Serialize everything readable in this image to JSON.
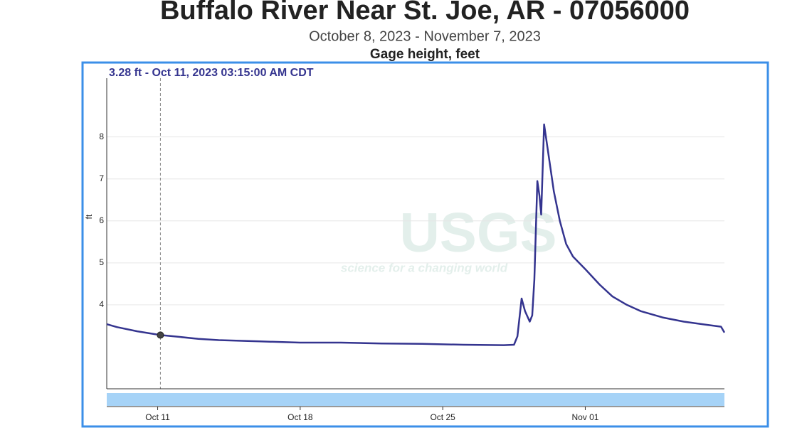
{
  "chart_data": {
    "type": "line",
    "title": "Buffalo River Near St. Joe, AR - 07056000",
    "subtitle": "October 8, 2023 - November 7, 2023",
    "header": "Gage height, feet",
    "y_label": "ft",
    "annotation": "3.28 ft - Oct 11, 2023 03:15:00 AM CDT",
    "highlight_index": 3,
    "watermark": {
      "logo": "USGS",
      "tagline": "science for a changing world"
    },
    "xlim": [
      "2023-10-08T12:00",
      "2023-11-07T20:00"
    ],
    "ylim": [
      2,
      9.4
    ],
    "yticks": [
      4,
      5,
      6,
      7,
      8
    ],
    "xticks": [
      {
        "value": "2023-10-11T00:00",
        "label": "Oct 11"
      },
      {
        "value": "2023-10-18T00:00",
        "label": "Oct 18"
      },
      {
        "value": "2023-10-25T00:00",
        "label": "Oct 25"
      },
      {
        "value": "2023-11-01T00:00",
        "label": "Nov 01"
      }
    ],
    "grid": true,
    "series": [
      {
        "name": "Gage height",
        "color": "#34348f",
        "x": [
          "2023-10-08T12:00",
          "2023-10-09T00:00",
          "2023-10-10T00:00",
          "2023-10-11T03:15",
          "2023-10-12T00:00",
          "2023-10-13T00:00",
          "2023-10-14T00:00",
          "2023-10-16T00:00",
          "2023-10-18T00:00",
          "2023-10-20T00:00",
          "2023-10-22T00:00",
          "2023-10-24T00:00",
          "2023-10-26T00:00",
          "2023-10-28T00:00",
          "2023-10-28T12:00",
          "2023-10-28T16:00",
          "2023-10-28T21:00",
          "2023-10-29T01:00",
          "2023-10-29T06:30",
          "2023-10-29T09:30",
          "2023-10-29T12:00",
          "2023-10-29T15:30",
          "2023-10-29T18:00",
          "2023-10-29T20:00",
          "2023-10-29T23:30",
          "2023-10-30T04:30",
          "2023-10-30T11:00",
          "2023-10-30T18:00",
          "2023-10-31T01:30",
          "2023-10-31T09:30",
          "2023-11-01T00:00",
          "2023-11-01T17:00",
          "2023-11-02T08:00",
          "2023-11-03T01:00",
          "2023-11-03T17:30",
          "2023-11-04T19:00",
          "2023-11-05T20:00",
          "2023-11-06T21:00",
          "2023-11-07T16:00",
          "2023-11-07T20:00"
        ],
        "values": [
          3.54,
          3.47,
          3.37,
          3.28,
          3.24,
          3.19,
          3.16,
          3.13,
          3.1,
          3.1,
          3.08,
          3.07,
          3.05,
          3.04,
          3.05,
          3.25,
          4.15,
          3.85,
          3.6,
          3.75,
          4.6,
          6.95,
          6.6,
          6.15,
          8.3,
          7.6,
          6.7,
          6.0,
          5.45,
          5.15,
          4.85,
          4.48,
          4.2,
          4.0,
          3.85,
          3.7,
          3.6,
          3.53,
          3.48,
          3.34
        ]
      }
    ]
  }
}
